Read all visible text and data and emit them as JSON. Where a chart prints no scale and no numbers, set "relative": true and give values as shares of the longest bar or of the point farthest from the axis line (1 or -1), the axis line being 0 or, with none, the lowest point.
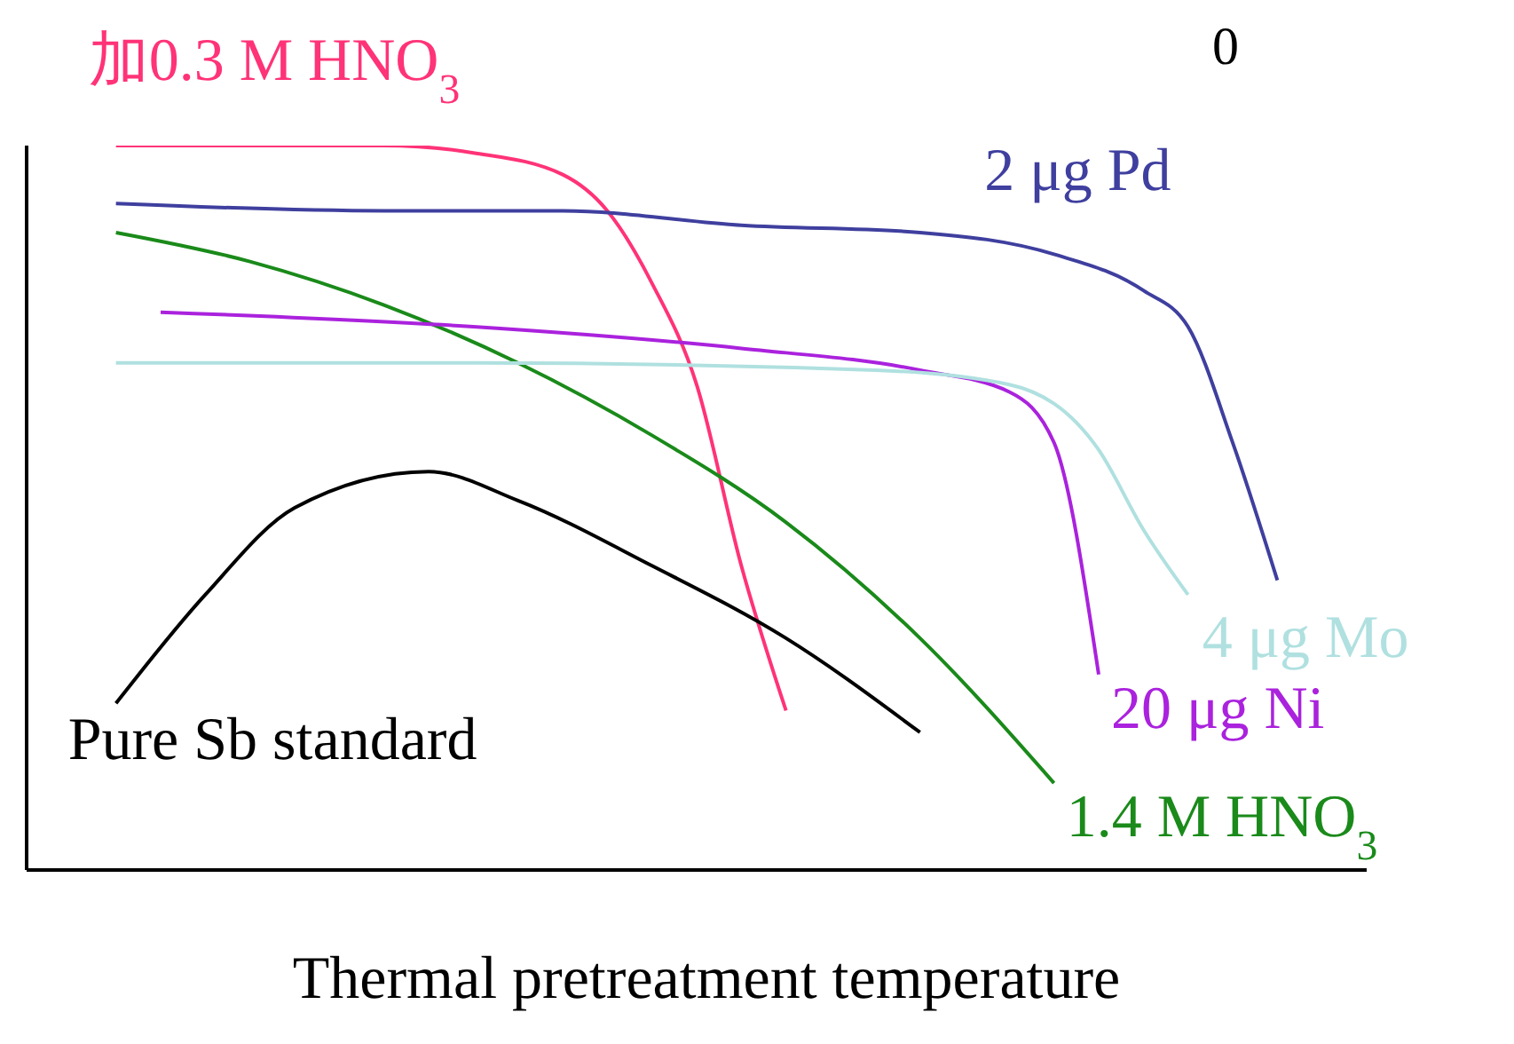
{
  "chart_data": {
    "type": "line",
    "relative": true,
    "xlabel": "Thermal pretreatment temperature",
    "annotations": [
      "0"
    ],
    "marker": "none",
    "line_style": "solid",
    "categories": [
      null,
      null,
      null,
      null,
      null,
      null,
      null,
      null,
      null,
      null,
      null,
      null,
      null,
      null,
      null,
      null,
      null,
      null,
      null,
      null,
      null,
      null,
      null,
      null,
      null,
      null,
      null,
      null,
      null,
      null,
      null
    ],
    "series": [
      {
        "name": "加0.3 M HNO$_{3}$",
        "color": "#ff3377",
        "values": [
          null,
          null,
          1.0,
          null,
          1.0,
          null,
          1.0,
          null,
          1.0,
          null,
          0.99,
          null,
          0.96,
          0.91,
          0.81,
          0.67,
          0.42,
          0.22,
          null,
          null,
          null,
          null,
          null,
          null,
          null,
          null,
          null,
          null,
          null,
          null,
          null
        ]
      },
      {
        "name": "2 μg Pd",
        "color": "#3f3f9f",
        "values": [
          null,
          null,
          0.92,
          null,
          null,
          null,
          null,
          null,
          0.91,
          null,
          null,
          null,
          0.91,
          null,
          null,
          null,
          0.89,
          null,
          null,
          null,
          0.88,
          null,
          null,
          0.85,
          null,
          0.8,
          0.75,
          0.59,
          0.4,
          null,
          null
        ]
      },
      {
        "name": "1.4 M HNO$_{3}$",
        "color": "#1a8a1a",
        "values": [
          null,
          null,
          0.88,
          null,
          null,
          0.84,
          null,
          null,
          0.78,
          null,
          null,
          0.7,
          null,
          null,
          0.6,
          null,
          null,
          0.48,
          null,
          null,
          0.32,
          null,
          null,
          0.12,
          null,
          null,
          null,
          null,
          null,
          null,
          null
        ]
      },
      {
        "name": "20 μg Ni",
        "color": "#aa22dd",
        "values": [
          null,
          null,
          null,
          0.77,
          null,
          null,
          null,
          null,
          null,
          null,
          0.75,
          null,
          null,
          null,
          null,
          null,
          0.72,
          null,
          null,
          null,
          0.69,
          null,
          0.66,
          0.59,
          0.27,
          null,
          null,
          null,
          null,
          null,
          null
        ]
      },
      {
        "name": "4 μg Mo",
        "color": "#b0e0e0",
        "values": [
          null,
          null,
          0.7,
          null,
          null,
          null,
          null,
          null,
          null,
          null,
          0.7,
          null,
          null,
          null,
          null,
          null,
          null,
          null,
          null,
          0.69,
          null,
          null,
          0.67,
          null,
          0.58,
          0.47,
          0.38,
          null,
          null,
          null,
          null
        ]
      },
      {
        "name": "Pure Sb standard",
        "color": "#000000",
        "values": [
          null,
          null,
          0.23,
          null,
          0.38,
          null,
          0.5,
          null,
          null,
          0.55,
          null,
          0.51,
          null,
          null,
          0.42,
          null,
          null,
          0.32,
          null,
          null,
          0.19,
          null,
          null,
          null,
          null,
          null,
          null,
          null,
          null,
          null,
          null
        ]
      }
    ]
  }
}
